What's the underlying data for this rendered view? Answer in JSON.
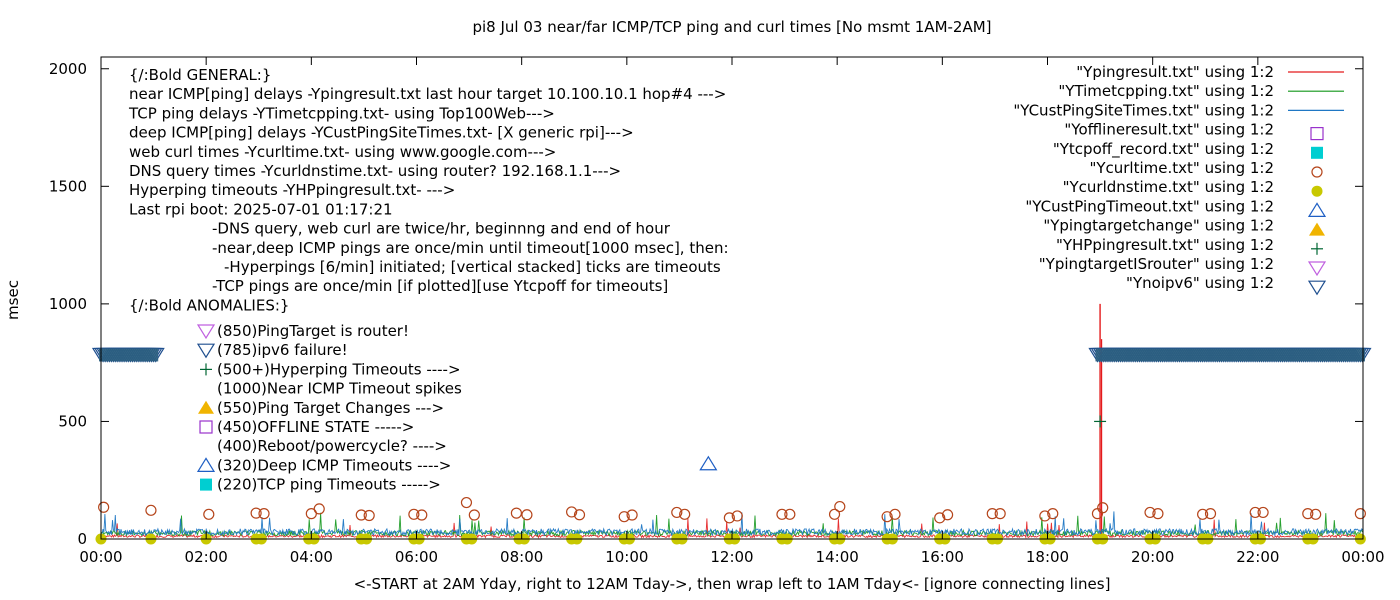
{
  "chart_data": {
    "type": "scatter",
    "title": "pi8 Jul 03  near/far ICMP/TCP ping and curl times [No msmt 1AM-2AM]",
    "xlabel": "<-START at 2AM Yday, right to 12AM Tday->, then wrap left to 1AM Tday<- [ignore connecting lines]",
    "ylabel": "msec",
    "xlim": [
      0,
      24
    ],
    "ylim": [
      0,
      2050
    ],
    "x_ticks": [
      "00:00",
      "02:00",
      "04:00",
      "06:00",
      "08:00",
      "10:00",
      "12:00",
      "14:00",
      "16:00",
      "18:00",
      "20:00",
      "22:00",
      "00:00"
    ],
    "x_tick_values": [
      0,
      2,
      4,
      6,
      8,
      10,
      12,
      14,
      16,
      18,
      20,
      22,
      24
    ],
    "y_ticks": [
      "0",
      "500",
      "1000",
      "1500",
      "2000"
    ],
    "y_tick_values": [
      0,
      500,
      1000,
      1500,
      2000
    ],
    "grid": false,
    "legend_position": "top-right",
    "legend": [
      {
        "label": "\"Ypingresult.txt\" using 1:2",
        "style": "line",
        "color": "#e41a1c"
      },
      {
        "label": "\"YTimetcpping.txt\" using 1:2",
        "style": "line",
        "color": "#109618"
      },
      {
        "label": "\"YCustPingSiteTimes.txt\" using 1:2",
        "style": "line",
        "color": "#1f77c4"
      },
      {
        "label": "\"Yofflineresult.txt\" using 1:2",
        "style": "square-open",
        "color": "#9932cc"
      },
      {
        "label": "\"Ytcpoff_record.txt\" using 1:2",
        "style": "square-filled",
        "color": "#00ced1"
      },
      {
        "label": "\"Ycurltime.txt\" using 1:2",
        "style": "circle-open",
        "color": "#b5451b"
      },
      {
        "label": "\"Ycurldnstime.txt\" using 1:2",
        "style": "circle-filled",
        "color": "#c8c800"
      },
      {
        "label": "\"YCustPingTimeout.txt\" using 1:2",
        "style": "triangle-open",
        "color": "#1f5fc4"
      },
      {
        "label": "\"Ypingtargetchange\" using 1:2",
        "style": "triangle-filled",
        "color": "#f0b400"
      },
      {
        "label": "\"YHPpingresult.txt\" using 1:2",
        "style": "plus",
        "color": "#006633"
      },
      {
        "label": "\"YpingtargetISrouter\" using 1:2",
        "style": "triangle-down-open",
        "color": "#c060e0"
      },
      {
        "label": "\"Ynoipv6\" using 1:2",
        "style": "triangle-down-open",
        "color": "#1f4f8f"
      }
    ],
    "notes": [
      "{/:Bold GENERAL:}",
      "near ICMP[ping] delays -Ypingresult.txt last hour target 10.100.10.1 hop#4 --->",
      "TCP ping delays -YTimetcpping.txt- using Top100Web--->",
      "deep ICMP[ping] delays -YCustPingSiteTimes.txt- [X generic rpi]--->",
      "web curl times -Ycurltime.txt- using www.google.com--->",
      "DNS query times -Ycurldnstime.txt- using router? 192.168.1.1--->",
      "Hyperping timeouts -YHPpingresult.txt- --->",
      "Last rpi boot: 2025-07-01 01:17:21",
      "-DNS query, web curl are twice/hr, beginnng and end of hour",
      "-near,deep ICMP pings are once/min until timeout[1000 msec], then:",
      "-Hyperpings [6/min] initiated; [vertical stacked] ticks are timeouts",
      "-TCP pings are once/min [if plotted][use Ytcpoff for timeouts]",
      "{/:Bold ANOMALIES:}"
    ],
    "anomaly_key": [
      {
        "text": "(850)PingTarget is router!",
        "style": "triangle-down-open",
        "color": "#c060e0"
      },
      {
        "text": "(785)ipv6 failure!",
        "style": "triangle-down-open",
        "color": "#1f4f8f"
      },
      {
        "text": "(500+)Hyperping Timeouts ---->",
        "style": "plus",
        "color": "#006633"
      },
      {
        "text": "(1000)Near ICMP Timeout spikes",
        "style": "none",
        "color": "#e41a1c"
      },
      {
        "text": "(550)Ping Target Changes --->",
        "style": "triangle-filled",
        "color": "#f0b400"
      },
      {
        "text": "(450)OFFLINE STATE ----->",
        "style": "square-open",
        "color": "#9932cc"
      },
      {
        "text": "(400)Reboot/powercycle? ---->",
        "style": "none",
        "color": "#000000"
      },
      {
        "text": "(320)Deep ICMP Timeouts ---->",
        "style": "triangle-open",
        "color": "#1f5fc4"
      },
      {
        "text": "(220)TCP ping Timeouts ----->",
        "style": "square-filled",
        "color": "#00ced1"
      }
    ],
    "series": [
      {
        "name": "\"Ycurltime.txt\" using 1:2",
        "marker": "circle-open",
        "color": "#b5451b",
        "x": [
          0.05,
          0.95,
          2.05,
          2.95,
          3.1,
          4.0,
          4.15,
          4.95,
          5.1,
          5.95,
          6.1,
          6.95,
          7.1,
          7.9,
          8.1,
          8.95,
          9.1,
          9.95,
          10.1,
          10.95,
          11.1,
          11.95,
          12.1,
          12.95,
          13.1,
          13.95,
          14.05,
          14.95,
          15.1,
          15.95,
          16.1,
          16.95,
          17.1,
          17.95,
          18.1,
          18.95,
          19.05,
          19.95,
          20.1,
          20.95,
          21.1,
          21.95,
          22.1,
          22.95,
          23.1,
          23.95
        ],
        "y": [
          135,
          122,
          105,
          110,
          108,
          108,
          128,
          102,
          100,
          105,
          102,
          155,
          102,
          110,
          103,
          115,
          103,
          95,
          102,
          113,
          105,
          90,
          98,
          105,
          105,
          105,
          138,
          95,
          105,
          90,
          103,
          108,
          108,
          98,
          108,
          108,
          133,
          113,
          108,
          105,
          108,
          113,
          113,
          108,
          105,
          108
        ]
      },
      {
        "name": "\"Ycurldnstime.txt\" using 1:2",
        "marker": "circle-filled",
        "color": "#c8c800",
        "x": [
          0.0,
          0.95,
          2.0,
          2.95,
          3.05,
          3.95,
          4.05,
          4.95,
          5.05,
          5.95,
          6.05,
          6.95,
          7.05,
          7.95,
          8.05,
          8.95,
          9.05,
          9.95,
          10.05,
          10.95,
          11.05,
          11.95,
          12.05,
          12.95,
          13.05,
          13.95,
          14.05,
          14.95,
          15.05,
          15.95,
          16.05,
          16.95,
          17.05,
          17.95,
          18.05,
          18.95,
          19.05,
          19.95,
          20.05,
          20.95,
          21.05,
          21.95,
          22.05,
          22.95,
          23.05,
          23.95
        ],
        "y": [
          0,
          0,
          0,
          0,
          0,
          0,
          0,
          0,
          0,
          0,
          0,
          0,
          0,
          0,
          0,
          0,
          0,
          0,
          0,
          0,
          0,
          0,
          0,
          0,
          0,
          0,
          0,
          0,
          0,
          0,
          0,
          0,
          0,
          0,
          0,
          0,
          0,
          0,
          0,
          0,
          0,
          0,
          0,
          0,
          0,
          0
        ]
      },
      {
        "name": "\"YCustPingTimeout.txt\" using 1:2",
        "marker": "triangle-open",
        "color": "#1f5fc4",
        "x": [
          11.55
        ],
        "y": [
          320
        ]
      },
      {
        "name": "\"YHPpingresult.txt\" using 1:2",
        "marker": "plus",
        "color": "#006633",
        "x": [
          19.0
        ],
        "y": [
          500
        ]
      },
      {
        "name": "\"Ynoipv6\" using 1:2",
        "marker": "triangle-down-open",
        "color": "#1f4f8f",
        "x_ranges": [
          [
            0.0,
            1.05
          ],
          [
            18.95,
            24.0
          ]
        ],
        "y": 785
      }
    ],
    "line_series": [
      {
        "name": "\"Ypingresult.txt\" using 1:2",
        "color": "#e41a1c",
        "baseline": 12,
        "spike": {
          "x": 19.0,
          "y": 1000
        }
      },
      {
        "name": "\"YTimetcpping.txt\" using 1:2",
        "color": "#109618",
        "baseline": 25
      },
      {
        "name": "\"YCustPingSiteTimes.txt\" using 1:2",
        "color": "#1f77c4",
        "baseline": 30
      }
    ]
  }
}
